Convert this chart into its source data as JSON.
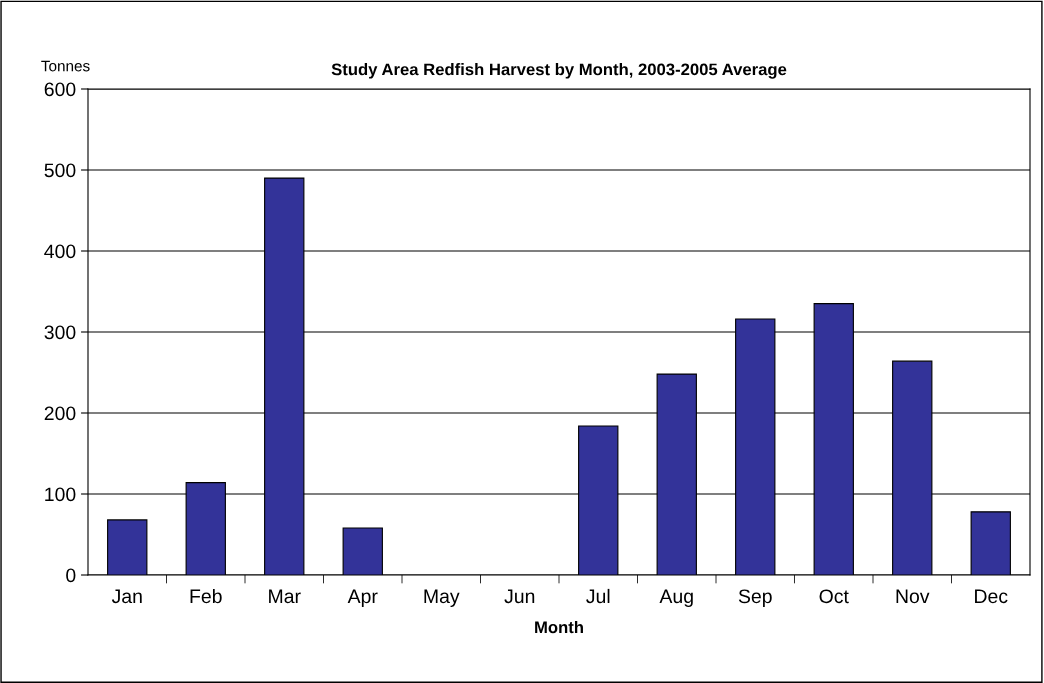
{
  "chart_data": {
    "type": "bar",
    "title": "Study Area Redfish Harvest by Month, 2003-2005 Average",
    "xlabel": "Month",
    "ylabel": "Tonnes",
    "categories": [
      "Jan",
      "Feb",
      "Mar",
      "Apr",
      "May",
      "Jun",
      "Jul",
      "Aug",
      "Sep",
      "Oct",
      "Nov",
      "Dec"
    ],
    "values": [
      68,
      114,
      490,
      58,
      0,
      0,
      184,
      248,
      316,
      335,
      264,
      78
    ],
    "color": "#333399",
    "ylim": [
      0,
      600
    ],
    "yticks": [
      0,
      100,
      200,
      300,
      400,
      500,
      600
    ],
    "grid": "y",
    "legend": false
  }
}
